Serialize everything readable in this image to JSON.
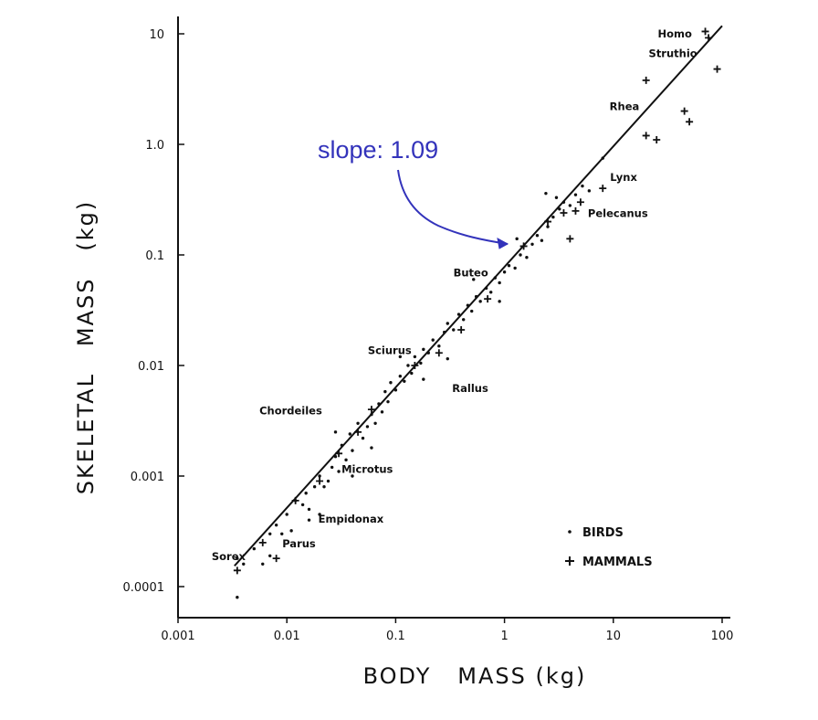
{
  "chart_data": {
    "type": "scatter",
    "title": "",
    "xlabel": "BODY   MASS (kg)",
    "ylabel": "SKELETAL   MASS   (kg)",
    "x_scale": "log",
    "y_scale": "log",
    "xlim": [
      0.001,
      100
    ],
    "ylim": [
      0.0001,
      10
    ],
    "x_ticks": [
      "0.001",
      "0.01",
      "0.1",
      "1",
      "10",
      "100"
    ],
    "y_ticks": [
      "0.0001",
      "0.001",
      "0.01",
      "0.1",
      "1.0",
      "10"
    ],
    "x_tick_values": [
      0.001,
      0.01,
      0.1,
      1,
      10,
      100
    ],
    "y_tick_values": [
      0.0001,
      0.001,
      0.01,
      0.1,
      1,
      10
    ],
    "grid": false,
    "legend_position": "bottom-right",
    "series": [
      {
        "name": "BIRDS",
        "marker": "dot",
        "points": [
          [
            0.0035,
            8e-05
          ],
          [
            0.0035,
            0.00018
          ],
          [
            0.004,
            0.00016
          ],
          [
            0.005,
            0.00022
          ],
          [
            0.006,
            0.00016
          ],
          [
            0.007,
            0.0003
          ],
          [
            0.008,
            0.00036
          ],
          [
            0.009,
            0.0003
          ],
          [
            0.01,
            0.00045
          ],
          [
            0.011,
            0.00032
          ],
          [
            0.012,
            0.0006
          ],
          [
            0.014,
            0.00055
          ],
          [
            0.015,
            0.0007
          ],
          [
            0.016,
            0.0005
          ],
          [
            0.018,
            0.0008
          ],
          [
            0.02,
            0.001
          ],
          [
            0.022,
            0.0008
          ],
          [
            0.024,
            0.0009
          ],
          [
            0.026,
            0.0012
          ],
          [
            0.028,
            0.0015
          ],
          [
            0.03,
            0.0011
          ],
          [
            0.032,
            0.0019
          ],
          [
            0.035,
            0.0014
          ],
          [
            0.038,
            0.0024
          ],
          [
            0.04,
            0.0017
          ],
          [
            0.045,
            0.003
          ],
          [
            0.05,
            0.0022
          ],
          [
            0.055,
            0.0028
          ],
          [
            0.06,
            0.0036
          ],
          [
            0.065,
            0.003
          ],
          [
            0.07,
            0.0045
          ],
          [
            0.075,
            0.0038
          ],
          [
            0.08,
            0.0058
          ],
          [
            0.085,
            0.0047
          ],
          [
            0.09,
            0.007
          ],
          [
            0.1,
            0.006
          ],
          [
            0.11,
            0.008
          ],
          [
            0.12,
            0.0072
          ],
          [
            0.13,
            0.01
          ],
          [
            0.14,
            0.0085
          ],
          [
            0.15,
            0.012
          ],
          [
            0.17,
            0.0105
          ],
          [
            0.18,
            0.014
          ],
          [
            0.2,
            0.013
          ],
          [
            0.22,
            0.017
          ],
          [
            0.25,
            0.015
          ],
          [
            0.28,
            0.02
          ],
          [
            0.3,
            0.024
          ],
          [
            0.34,
            0.021
          ],
          [
            0.38,
            0.029
          ],
          [
            0.42,
            0.026
          ],
          [
            0.46,
            0.035
          ],
          [
            0.5,
            0.031
          ],
          [
            0.55,
            0.042
          ],
          [
            0.6,
            0.038
          ],
          [
            0.68,
            0.05
          ],
          [
            0.75,
            0.046
          ],
          [
            0.82,
            0.062
          ],
          [
            0.9,
            0.056
          ],
          [
            1.0,
            0.07
          ],
          [
            1.1,
            0.08
          ],
          [
            1.25,
            0.076
          ],
          [
            1.4,
            0.1
          ],
          [
            1.6,
            0.095
          ],
          [
            1.8,
            0.125
          ],
          [
            2.0,
            0.15
          ],
          [
            2.2,
            0.135
          ],
          [
            2.5,
            0.18
          ],
          [
            2.8,
            0.22
          ],
          [
            3.0,
            0.33
          ],
          [
            3.2,
            0.26
          ],
          [
            3.5,
            0.3
          ],
          [
            4.0,
            0.28
          ],
          [
            4.5,
            0.35
          ],
          [
            5.2,
            0.42
          ],
          [
            6.0,
            0.38
          ],
          [
            8.0,
            0.75
          ],
          [
            0.016,
            0.0004
          ],
          [
            0.028,
            0.0025
          ],
          [
            0.06,
            0.0018
          ],
          [
            0.11,
            0.012
          ],
          [
            0.18,
            0.0075
          ],
          [
            0.3,
            0.0115
          ],
          [
            0.52,
            0.06
          ],
          [
            0.9,
            0.038
          ],
          [
            2.4,
            0.36
          ],
          [
            1.3,
            0.14
          ],
          [
            0.04,
            0.001
          ],
          [
            0.02,
            0.00045
          ],
          [
            0.007,
            0.00019
          ]
        ]
      },
      {
        "name": "MAMMALS",
        "marker": "plus",
        "points": [
          [
            0.0035,
            0.00014
          ],
          [
            0.006,
            0.00025
          ],
          [
            0.012,
            0.0006
          ],
          [
            0.02,
            0.0009
          ],
          [
            0.03,
            0.0016
          ],
          [
            0.045,
            0.0025
          ],
          [
            0.06,
            0.004
          ],
          [
            0.15,
            0.01
          ],
          [
            0.25,
            0.013
          ],
          [
            0.4,
            0.021
          ],
          [
            0.7,
            0.04
          ],
          [
            1.5,
            0.12
          ],
          [
            2.5,
            0.2
          ],
          [
            3.5,
            0.24
          ],
          [
            4.5,
            0.25
          ],
          [
            5.0,
            0.3
          ],
          [
            8.0,
            0.4
          ],
          [
            4.0,
            0.14
          ],
          [
            20.0,
            3.8
          ],
          [
            20.0,
            1.2
          ],
          [
            25.0,
            1.1
          ],
          [
            45.0,
            2.0
          ],
          [
            50.0,
            1.6
          ],
          [
            70.0,
            10.5
          ],
          [
            75.0,
            9.2
          ],
          [
            90.0,
            4.8
          ],
          [
            0.008,
            0.00018
          ]
        ]
      }
    ],
    "fit_line": {
      "slope": 1.09,
      "x_range": [
        0.0033,
        100
      ],
      "at_x": 1,
      "y_at_x": 0.078
    },
    "annotations": {
      "slope_note": "slope: 1.09",
      "taxa": [
        {
          "label": "Homo",
          "x": 70,
          "y": 10
        },
        {
          "label": "Struthio",
          "x": 90,
          "y": 4.8
        },
        {
          "label": "Rhea",
          "x": 20,
          "y": 1.2
        },
        {
          "label": "Lynx",
          "x": 8,
          "y": 0.4
        },
        {
          "label": "Pelecanus",
          "x": 5,
          "y": 0.3
        },
        {
          "label": "Buteo",
          "x": 1.0,
          "y": 0.08
        },
        {
          "label": "Sciurus",
          "x": 0.25,
          "y": 0.015
        },
        {
          "label": "Rallus",
          "x": 0.2,
          "y": 0.013
        },
        {
          "label": "Chordeiles",
          "x": 0.045,
          "y": 0.0022
        },
        {
          "label": "Microtus",
          "x": 0.045,
          "y": 0.0022
        },
        {
          "label": "Empidonax",
          "x": 0.012,
          "y": 0.0006
        },
        {
          "label": "Sorex",
          "x": 0.0035,
          "y": 0.00018
        },
        {
          "label": "Parus",
          "x": 0.01,
          "y": 0.0004
        }
      ]
    }
  },
  "colors": {
    "ink": "#111111",
    "annotation": "#3333bb"
  }
}
